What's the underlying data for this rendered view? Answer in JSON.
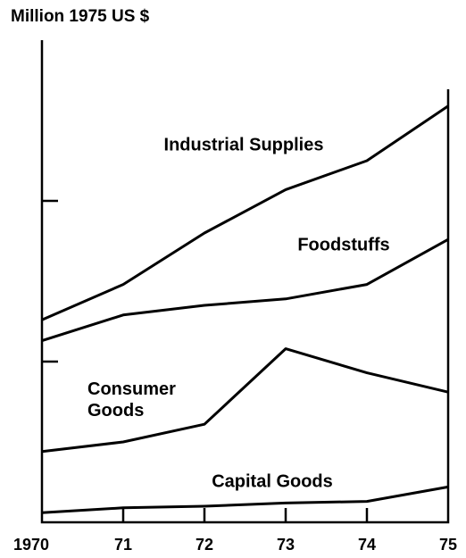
{
  "chart_data": {
    "type": "line",
    "title": "Million 1975 US $",
    "categories": [
      "1970",
      "71",
      "72",
      "73",
      "74",
      "75"
    ],
    "series": [
      {
        "name": "Industrial Supplies",
        "color": "#000000",
        "values": [
          126,
          148,
          180,
          207,
          225,
          259
        ]
      },
      {
        "name": "Foodstuffs",
        "color": "#000000",
        "values": [
          113,
          129,
          135,
          139,
          148,
          176
        ]
      },
      {
        "name": "Consumer Goods",
        "color": "#000000",
        "values": [
          44,
          50,
          61,
          108,
          93,
          81
        ]
      },
      {
        "name": "Capital Goods",
        "color": "#000000",
        "values": [
          6,
          9,
          10,
          12,
          13,
          22
        ]
      }
    ],
    "ylim": [
      0,
      300
    ],
    "yticks": [
      100,
      200
    ]
  }
}
